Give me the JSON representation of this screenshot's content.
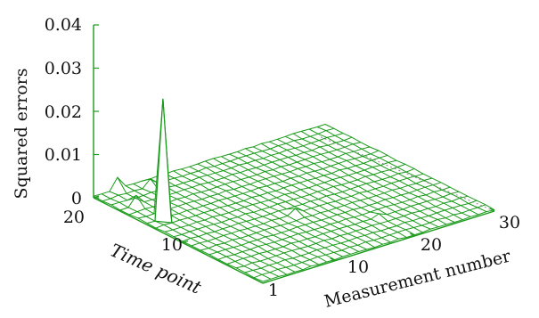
{
  "chart_data": {
    "type": "surface",
    "title": "",
    "zlabel": "Squared   errors",
    "xlabel": "Measurement number",
    "ylabel": "Time point",
    "x_ticks": [
      "10",
      "20",
      "30"
    ],
    "y_ticks": [
      "1",
      "10",
      "20"
    ],
    "z_ticks": [
      "0",
      "0.01",
      "0.02",
      "0.03",
      "0.04"
    ],
    "x_range": [
      1,
      30
    ],
    "y_range": [
      1,
      20
    ],
    "z_range": [
      0,
      0.04
    ],
    "color": "#1a9a1a",
    "baseline_error": 0.0005,
    "peaks": [
      {
        "x": 3,
        "y": 14,
        "z": 0.028
      },
      {
        "x": 4,
        "y": 20,
        "z": 0.003
      },
      {
        "x": 7,
        "y": 19,
        "z": 0.002
      },
      {
        "x": 3,
        "y": 17,
        "z": 0.0025
      },
      {
        "x": 14,
        "y": 9,
        "z": 0.0015
      },
      {
        "x": 20,
        "y": 5,
        "z": 0.001
      }
    ]
  }
}
